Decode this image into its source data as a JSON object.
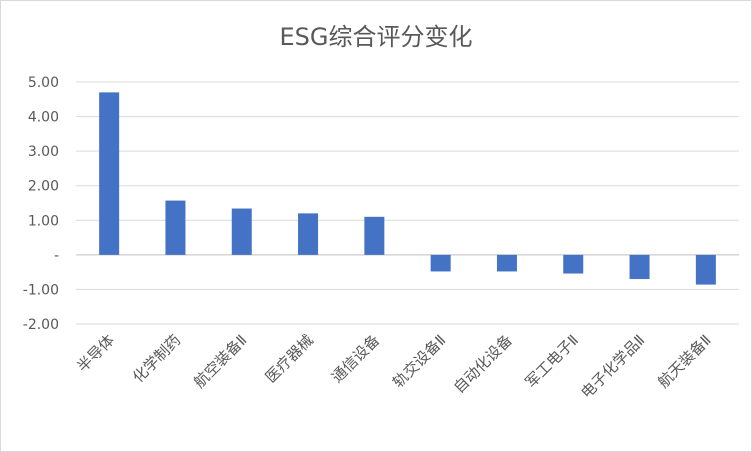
{
  "chart_data": {
    "type": "bar",
    "title": "ESG综合评分变化",
    "categories": [
      "半导体",
      "化学制药",
      "航空装备Ⅱ",
      "医疗器械",
      "通信设备",
      "轨交设备Ⅱ",
      "自动化设备",
      "军工电子Ⅱ",
      "电子化学品Ⅱ",
      "航天装备Ⅱ"
    ],
    "values": [
      4.7,
      1.57,
      1.34,
      1.2,
      1.1,
      -0.48,
      -0.48,
      -0.54,
      -0.7,
      -0.86
    ],
    "ylim": [
      -2,
      5
    ],
    "yticks": [
      5,
      4,
      3,
      2,
      1,
      0,
      -1,
      -2
    ],
    "ytick_labels": [
      "5.00",
      "4.00",
      "3.00",
      "2.00",
      "1.00",
      "-",
      "-1.00",
      "-2.00"
    ],
    "xlabel": "",
    "ylabel": "",
    "grid": true,
    "legend": "none",
    "bar_color": "#4472C4"
  }
}
